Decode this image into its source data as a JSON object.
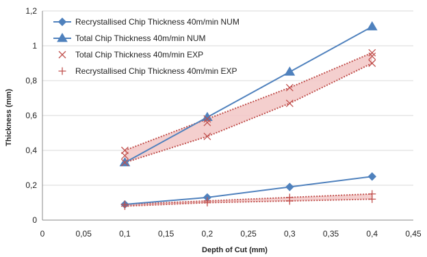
{
  "chart_data": {
    "type": "scatter",
    "title": "",
    "xlabel": "Depth of Cut (mm)",
    "ylabel": "Thickness (mm)",
    "xlim": [
      0,
      0.45
    ],
    "ylim": [
      0,
      1.2
    ],
    "x_ticks": [
      "0",
      "0,05",
      "0,1",
      "0,15",
      "0,2",
      "0,25",
      "0,3",
      "0,35",
      "0,4",
      "0,45"
    ],
    "y_ticks": [
      "0",
      "0,2",
      "0,4",
      "0,6",
      "0,8",
      "1",
      "1,2"
    ],
    "grid": "horizontal",
    "legend_position": "top-left",
    "series": [
      {
        "name": "Recrystallised Chip Thickness 40m/min NUM",
        "style": "line-marker",
        "marker": "diamond",
        "color": "#4f81bd",
        "x": [
          0.1,
          0.2,
          0.3,
          0.4
        ],
        "y": [
          0.09,
          0.13,
          0.19,
          0.25
        ]
      },
      {
        "name": "Total Chip Thickness 40m/min NUM",
        "style": "line-marker",
        "marker": "triangle",
        "color": "#4f81bd",
        "x": [
          0.1,
          0.2,
          0.3,
          0.4
        ],
        "y": [
          0.33,
          0.59,
          0.85,
          1.11
        ]
      },
      {
        "name": "Total Chip Thickness 40m/min EXP",
        "style": "marker",
        "marker": "x",
        "color": "#c0504d",
        "x": [
          0.1,
          0.1,
          0.1,
          0.2,
          0.2,
          0.2,
          0.3,
          0.3,
          0.4,
          0.4,
          0.4
        ],
        "y": [
          0.4,
          0.37,
          0.33,
          0.58,
          0.56,
          0.48,
          0.76,
          0.67,
          0.96,
          0.94,
          0.9
        ]
      },
      {
        "name": "Recrystallised Chip Thickness 40m/min EXP",
        "style": "marker",
        "marker": "plus",
        "color": "#c0504d",
        "x": [
          0.1,
          0.1,
          0.2,
          0.2,
          0.3,
          0.3,
          0.4,
          0.4
        ],
        "y": [
          0.09,
          0.08,
          0.11,
          0.1,
          0.13,
          0.11,
          0.15,
          0.12
        ]
      }
    ],
    "bands": [
      {
        "color": "#c0504d",
        "fill": "#f2c7c5",
        "x": [
          0.1,
          0.2,
          0.3,
          0.4
        ],
        "upper": [
          0.4,
          0.58,
          0.76,
          0.96
        ],
        "lower": [
          0.33,
          0.48,
          0.67,
          0.9
        ]
      },
      {
        "color": "#c0504d",
        "fill": "#f2c7c5",
        "x": [
          0.1,
          0.2,
          0.3,
          0.4
        ],
        "upper": [
          0.09,
          0.11,
          0.13,
          0.15
        ],
        "lower": [
          0.08,
          0.1,
          0.11,
          0.12
        ]
      }
    ]
  }
}
